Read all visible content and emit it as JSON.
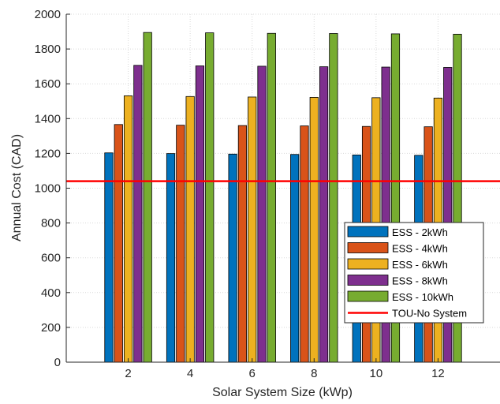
{
  "chart_data": {
    "type": "bar",
    "title": "",
    "xlabel": "Solar System Size (kWp)",
    "ylabel": "Annual Cost (CAD)",
    "categories": [
      "2",
      "4",
      "6",
      "8",
      "10",
      "12"
    ],
    "ylim": [
      0,
      2000
    ],
    "yticks": [
      "0",
      "200",
      "400",
      "600",
      "800",
      "1000",
      "1200",
      "1400",
      "1600",
      "1800",
      "2000"
    ],
    "grid": true,
    "legend_position": "lower-right",
    "series": [
      {
        "name": "ESS - 2kWh",
        "color": "#0072BD",
        "values": [
          1203,
          1199,
          1196,
          1194,
          1191,
          1189
        ]
      },
      {
        "name": "ESS - 4kWh",
        "color": "#D95319",
        "values": [
          1366,
          1362,
          1360,
          1358,
          1355,
          1353
        ]
      },
      {
        "name": "ESS - 6kWh",
        "color": "#EDB120",
        "values": [
          1531,
          1527,
          1524,
          1522,
          1520,
          1518
        ]
      },
      {
        "name": "ESS - 8kWh",
        "color": "#7E2F8E",
        "values": [
          1706,
          1703,
          1701,
          1698,
          1696,
          1694
        ]
      },
      {
        "name": "ESS - 10kWh",
        "color": "#77AC30",
        "values": [
          1895,
          1893,
          1890,
          1889,
          1887,
          1885
        ]
      }
    ],
    "reference_line": {
      "name": "TOU-No System",
      "color": "#FF0000",
      "value": 1040
    }
  }
}
